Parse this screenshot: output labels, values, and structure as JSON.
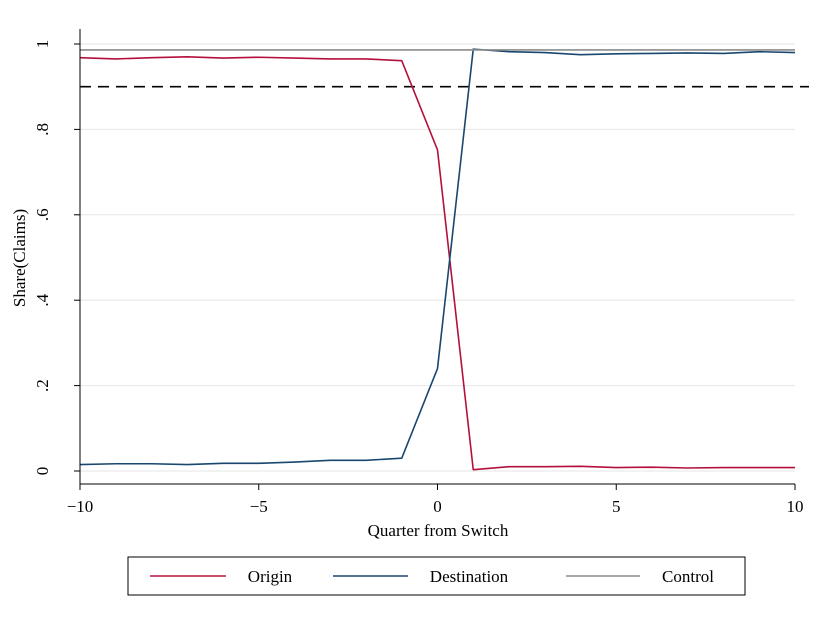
{
  "chart_data": {
    "type": "line",
    "xlabel": "Quarter from Switch",
    "ylabel": "Share(Claims)",
    "xlim": [
      -10,
      10
    ],
    "ylim": [
      0,
      1
    ],
    "x_ticks": [
      -10,
      -5,
      0,
      5,
      10
    ],
    "x_tick_labels": [
      "−10",
      "−5",
      "0",
      "5",
      "10"
    ],
    "y_ticks": [
      0,
      0.2,
      0.4,
      0.6,
      0.8,
      1
    ],
    "y_tick_labels": [
      "0",
      ".2",
      ".4",
      ".6",
      ".8",
      "1"
    ],
    "grid": true,
    "reference_line": {
      "y": 0.9,
      "style": "dashed",
      "color": "#000000"
    },
    "legend_position": "bottom",
    "x": [
      -10,
      -9,
      -8,
      -7,
      -6,
      -5,
      -4,
      -3,
      -2,
      -1,
      0,
      1,
      2,
      3,
      4,
      5,
      6,
      7,
      8,
      9,
      10
    ],
    "series": [
      {
        "name": "Origin",
        "color": "#b5103c",
        "values": [
          0.968,
          0.965,
          0.968,
          0.97,
          0.967,
          0.969,
          0.967,
          0.965,
          0.965,
          0.961,
          0.752,
          0.003,
          0.01,
          0.01,
          0.011,
          0.008,
          0.009,
          0.007,
          0.008,
          0.008,
          0.008
        ]
      },
      {
        "name": "Destination",
        "color": "#1a476f",
        "values": [
          0.015,
          0.017,
          0.017,
          0.015,
          0.018,
          0.018,
          0.021,
          0.025,
          0.025,
          0.03,
          0.24,
          0.988,
          0.982,
          0.98,
          0.975,
          0.977,
          0.978,
          0.979,
          0.978,
          0.982,
          0.98
        ]
      },
      {
        "name": "Control",
        "color": "#8c8c8c",
        "values": [
          0.986,
          0.986,
          0.986,
          0.986,
          0.986,
          0.986,
          0.986,
          0.986,
          0.986,
          0.986,
          0.986,
          0.986,
          0.986,
          0.986,
          0.986,
          0.986,
          0.986,
          0.986,
          0.986,
          0.986,
          0.986
        ]
      }
    ]
  }
}
